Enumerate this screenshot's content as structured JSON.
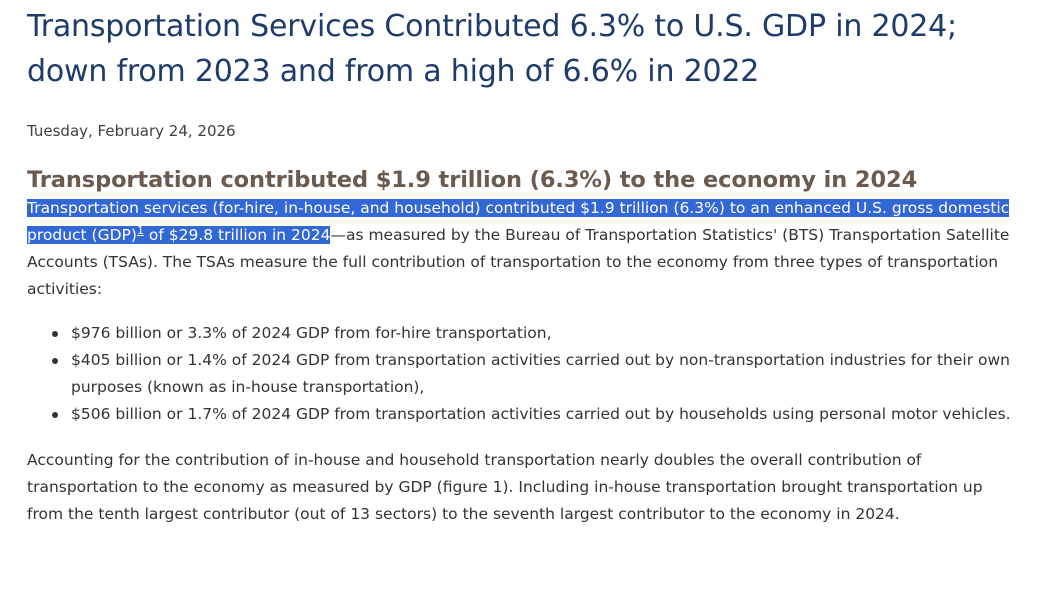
{
  "article": {
    "title": "Transportation Services Contributed 6.3% to U.S. GDP in 2024; down from 2023 and from a high of 6.6% in 2022",
    "date": "Tuesday, February 24, 2026",
    "section_heading": "Transportation contributed $1.9 trillion (6.3%) to the economy in 2024",
    "intro": {
      "selected_part1": "Transportation services (for-hire, in-house, and household) contributed $1.9 trillion (6.3%) to an enhanced U.S. gross domestic product (GDP)",
      "footnote": "1",
      "selected_part2": " of $29.8 trillion in 2024",
      "rest": "—as measured by the Bureau of Transportation Statistics' (BTS) Transportation Satellite Accounts (TSAs). The TSAs measure the full contribution of transportation to the economy from three types of transportation activities:"
    },
    "bullets": [
      "$976 billion or 3.3% of 2024 GDP from for-hire transportation,",
      "$405 billion or 1.4% of 2024 GDP from transportation activities carried out by non-transportation industries for their own purposes (known as in-house transportation),",
      "$506 billion or 1.7% of 2024 GDP from transportation activities carried out by households using personal motor vehicles."
    ],
    "closing_paragraph": "Accounting for the contribution of in-house and household transportation nearly doubles the overall contribution of transportation to the economy as measured by GDP (figure 1). Including in-house transportation brought transportation up from the tenth largest contributor (out of 13 sectors) to the seventh largest contributor to the economy in 2024."
  },
  "colors": {
    "title": "#1d3b6b",
    "subtitle": "#6b5a4f",
    "selection": "#3267d6",
    "body_text": "#333333"
  }
}
